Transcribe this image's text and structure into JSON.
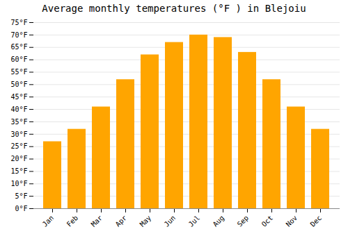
{
  "chart_data": {
    "type": "bar",
    "title": "Average monthly temperatures (°F ) in Blejoiu",
    "categories": [
      "Jan",
      "Feb",
      "Mar",
      "Apr",
      "May",
      "Jun",
      "Jul",
      "Aug",
      "Sep",
      "Oct",
      "Nov",
      "Dec"
    ],
    "values": [
      27,
      32,
      41,
      52,
      62,
      67,
      70,
      69,
      63,
      52,
      41,
      32
    ],
    "color": "#FFA500",
    "ylim": [
      0,
      75
    ],
    "yticks": [
      {
        "value": 0,
        "label": "0°F"
      },
      {
        "value": 5,
        "label": "5°F"
      },
      {
        "value": 10,
        "label": "10°F"
      },
      {
        "value": 15,
        "label": "15°F"
      },
      {
        "value": 20,
        "label": "20°F"
      },
      {
        "value": 25,
        "label": "25°F"
      },
      {
        "value": 30,
        "label": "30°F"
      },
      {
        "value": 35,
        "label": "35°F"
      },
      {
        "value": 40,
        "label": "40°F"
      },
      {
        "value": 45,
        "label": "45°F"
      },
      {
        "value": 50,
        "label": "50°F"
      },
      {
        "value": 55,
        "label": "55°F"
      },
      {
        "value": 60,
        "label": "60°F"
      },
      {
        "value": 65,
        "label": "65°F"
      },
      {
        "value": 70,
        "label": "70°F"
      },
      {
        "value": 75,
        "label": "75°F"
      }
    ],
    "grid": true
  }
}
